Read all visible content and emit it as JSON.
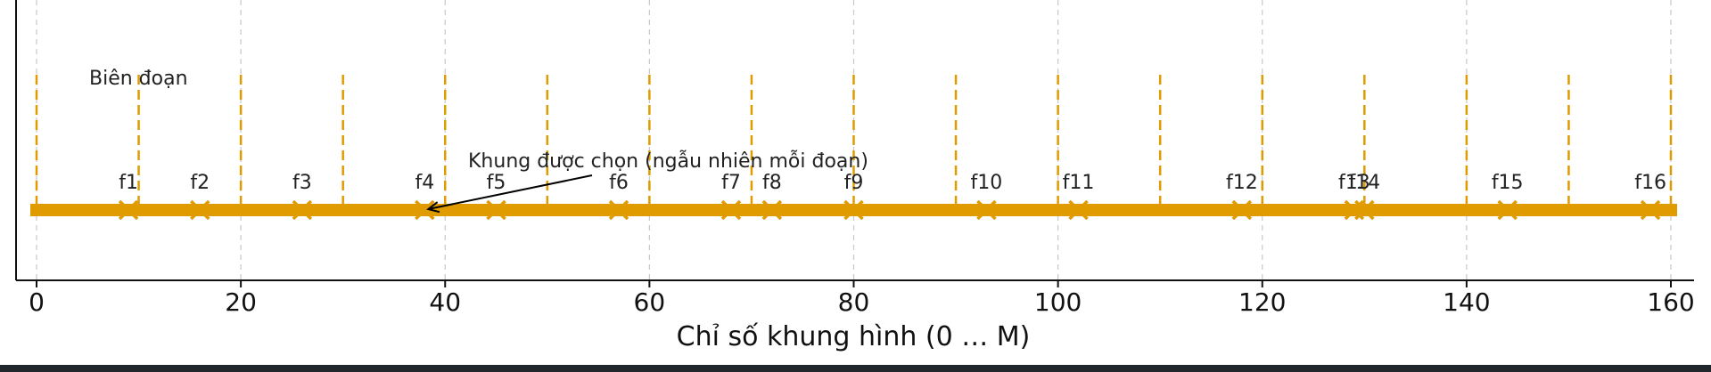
{
  "chart_data": {
    "type": "scatter",
    "title": "",
    "xlabel": "Chỉ số khung hình (0 … M)",
    "ylabel": "",
    "xlim": [
      -1.5,
      162
    ],
    "x_ticks": [
      0,
      20,
      40,
      60,
      80,
      100,
      120,
      140,
      160
    ],
    "x_tick_labels": [
      "0",
      "20",
      "40",
      "60",
      "80",
      "100",
      "120",
      "140",
      "160"
    ],
    "grid": "vertical dashed at major ticks",
    "timeline": {
      "start": 0,
      "end": 160
    },
    "segment_boundaries": [
      0,
      10,
      20,
      30,
      40,
      50,
      60,
      70,
      80,
      90,
      100,
      110,
      120,
      130,
      140,
      150,
      160
    ],
    "boundary_label": "Biên đoạn",
    "selected_frames": [
      {
        "label": "f1",
        "x": 9
      },
      {
        "label": "f2",
        "x": 16
      },
      {
        "label": "f3",
        "x": 26
      },
      {
        "label": "f4",
        "x": 38
      },
      {
        "label": "f5",
        "x": 45
      },
      {
        "label": "f6",
        "x": 57
      },
      {
        "label": "f7",
        "x": 68
      },
      {
        "label": "f8",
        "x": 72
      },
      {
        "label": "f9",
        "x": 80
      },
      {
        "label": "f10",
        "x": 93
      },
      {
        "label": "f11",
        "x": 102
      },
      {
        "label": "f12",
        "x": 118
      },
      {
        "label": "f13",
        "x": 129
      },
      {
        "label": "f14",
        "x": 130
      },
      {
        "label": "f15",
        "x": 144
      },
      {
        "label": "f16",
        "x": 158
      }
    ],
    "annotation": {
      "text": "Khung được chọn (ngẫu nhiên mỗi đoạn)",
      "points_to_x": 38
    },
    "colors": {
      "timeline": "#e09b00",
      "boundary": "#e09b00",
      "marker": "#e09b00",
      "grid": "#c8c8c8",
      "axis": "#111111",
      "arrow": "#000000"
    }
  }
}
